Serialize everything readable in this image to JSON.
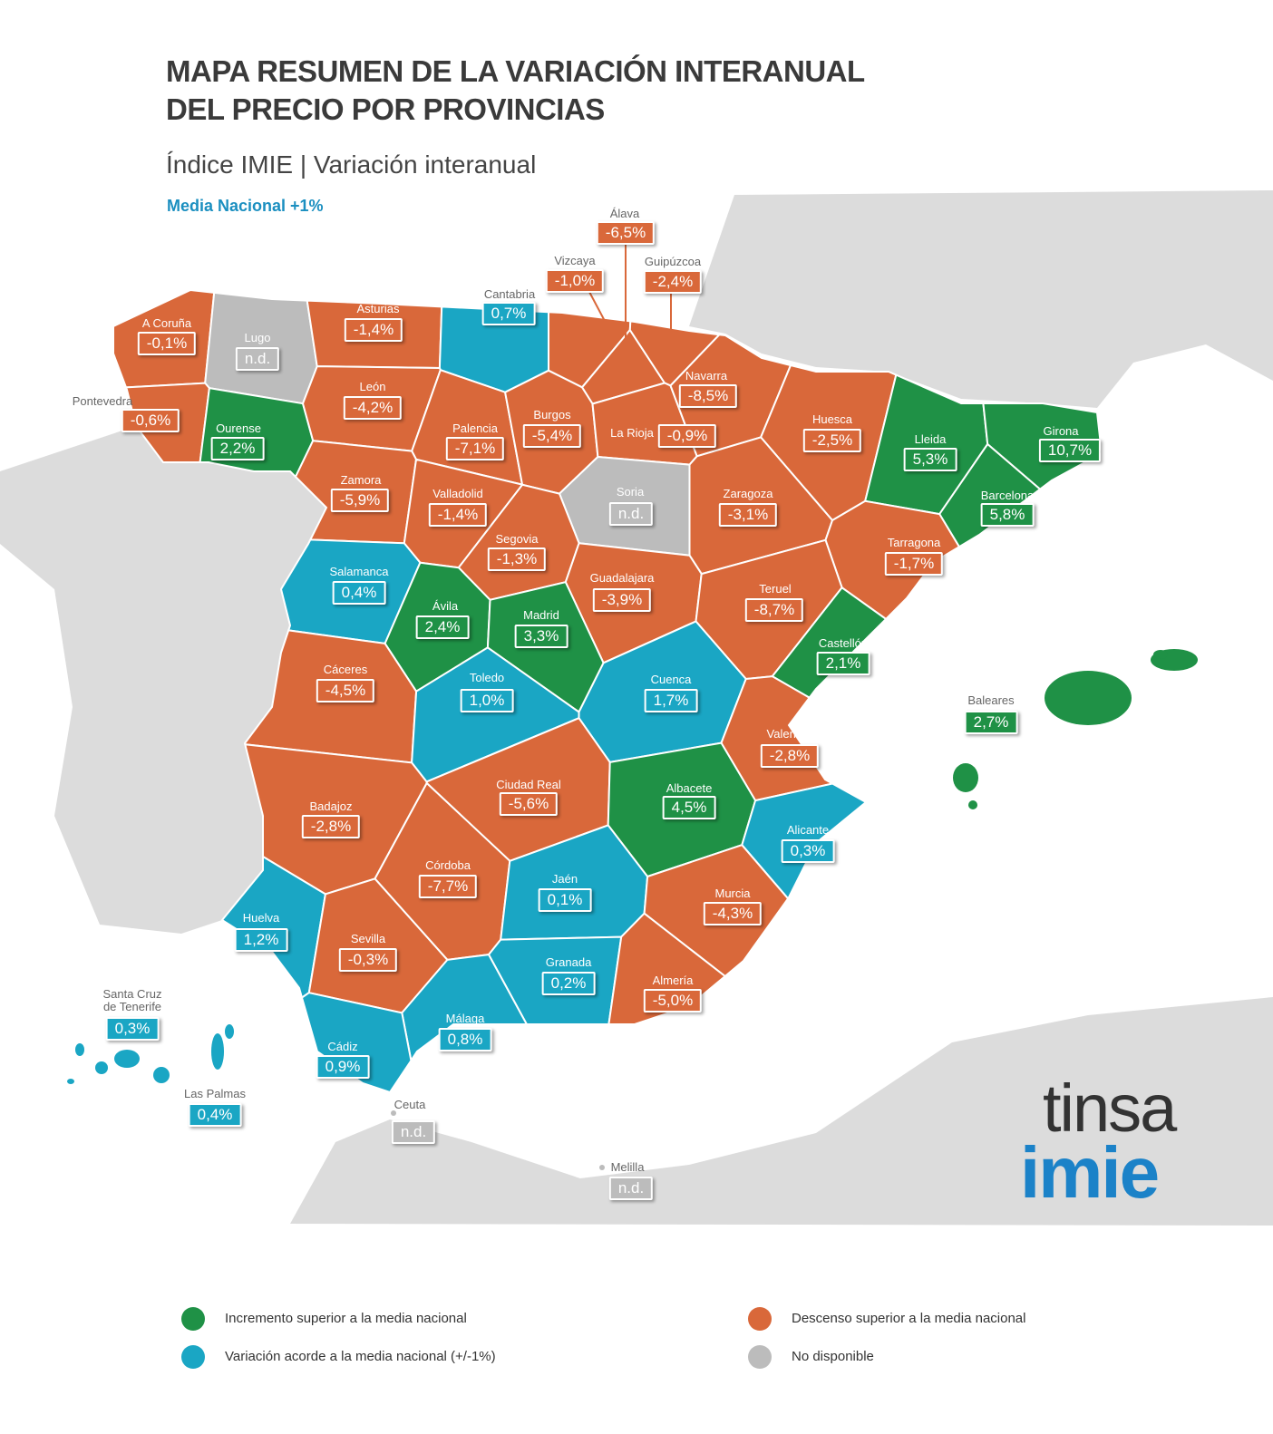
{
  "header": {
    "title_line1": "MAPA RESUMEN DE LA VARIACIÓN INTERANUAL",
    "title_line2": "DEL PRECIO POR PROVINCIAS",
    "subtitle": "Índice IMIE | Variación interanual",
    "national_average": "Media Nacional +1%"
  },
  "provinces": [
    {
      "name": "A Coruña",
      "value": "-0,1%",
      "color": "#d9683a"
    },
    {
      "name": "Lugo",
      "value": "n.d.",
      "color": "#bcbcbc"
    },
    {
      "name": "Pontevedra",
      "value": "-0,6%",
      "color": "#d9683a"
    },
    {
      "name": "Ourense",
      "value": "2,2%",
      "color": "#1f9146"
    },
    {
      "name": "Asturias",
      "value": "-1,4%",
      "color": "#d9683a"
    },
    {
      "name": "Cantabria",
      "value": "0,7%",
      "color": "#1aa6c4"
    },
    {
      "name": "Vizcaya",
      "value": "-1,0%",
      "color": "#d9683a"
    },
    {
      "name": "Álava",
      "value": "-6,5%",
      "color": "#d9683a"
    },
    {
      "name": "Guipúzcoa",
      "value": "-2,4%",
      "color": "#d9683a"
    },
    {
      "name": "León",
      "value": "-4,2%",
      "color": "#d9683a"
    },
    {
      "name": "Palencia",
      "value": "-7,1%",
      "color": "#d9683a"
    },
    {
      "name": "Burgos",
      "value": "-5,4%",
      "color": "#d9683a"
    },
    {
      "name": "La Rioja",
      "value": "-0,9%",
      "color": "#d9683a"
    },
    {
      "name": "Navarra",
      "value": "-8,5%",
      "color": "#d9683a"
    },
    {
      "name": "Huesca",
      "value": "-2,5%",
      "color": "#d9683a"
    },
    {
      "name": "Lleida",
      "value": "5,3%",
      "color": "#1f9146"
    },
    {
      "name": "Girona",
      "value": "10,7%",
      "color": "#1f9146"
    },
    {
      "name": "Barcelona",
      "value": "5,8%",
      "color": "#1f9146"
    },
    {
      "name": "Zamora",
      "value": "-5,9%",
      "color": "#d9683a"
    },
    {
      "name": "Valladolid",
      "value": "-1,4%",
      "color": "#d9683a"
    },
    {
      "name": "Soria",
      "value": "n.d.",
      "color": "#bcbcbc"
    },
    {
      "name": "Zaragoza",
      "value": "-3,1%",
      "color": "#d9683a"
    },
    {
      "name": "Segovia",
      "value": "-1,3%",
      "color": "#d9683a"
    },
    {
      "name": "Tarragona",
      "value": "-1,7%",
      "color": "#d9683a"
    },
    {
      "name": "Salamanca",
      "value": "0,4%",
      "color": "#1aa6c4"
    },
    {
      "name": "Guadalajara",
      "value": "-3,9%",
      "color": "#d9683a"
    },
    {
      "name": "Teruel",
      "value": "-8,7%",
      "color": "#d9683a"
    },
    {
      "name": "Ávila",
      "value": "2,4%",
      "color": "#1f9146"
    },
    {
      "name": "Madrid",
      "value": "3,3%",
      "color": "#1f9146"
    },
    {
      "name": "Castellón",
      "value": "2,1%",
      "color": "#1f9146"
    },
    {
      "name": "Cáceres",
      "value": "-4,5%",
      "color": "#d9683a"
    },
    {
      "name": "Toledo",
      "value": "1,0%",
      "color": "#1aa6c4"
    },
    {
      "name": "Cuenca",
      "value": "1,7%",
      "color": "#1aa6c4"
    },
    {
      "name": "Baleares",
      "value": "2,7%",
      "color": "#1f9146"
    },
    {
      "name": "Valencia",
      "value": "-2,8%",
      "color": "#d9683a"
    },
    {
      "name": "Ciudad Real",
      "value": "-5,6%",
      "color": "#d9683a"
    },
    {
      "name": "Albacete",
      "value": "4,5%",
      "color": "#1f9146"
    },
    {
      "name": "Badajoz",
      "value": "-2,8%",
      "color": "#d9683a"
    },
    {
      "name": "Alicante",
      "value": "0,3%",
      "color": "#1aa6c4"
    },
    {
      "name": "Córdoba",
      "value": "-7,7%",
      "color": "#d9683a"
    },
    {
      "name": "Jaén",
      "value": "0,1%",
      "color": "#1aa6c4"
    },
    {
      "name": "Murcia",
      "value": "-4,3%",
      "color": "#d9683a"
    },
    {
      "name": "Huelva",
      "value": "1,2%",
      "color": "#1aa6c4"
    },
    {
      "name": "Sevilla",
      "value": "-0,3%",
      "color": "#d9683a"
    },
    {
      "name": "Granada",
      "value": "0,2%",
      "color": "#1aa6c4"
    },
    {
      "name": "Almería",
      "value": "-5,0%",
      "color": "#d9683a"
    },
    {
      "name": "Santa Cruz de Tenerife",
      "value": "0,3%",
      "color": "#1aa6c4"
    },
    {
      "name": "Málaga",
      "value": "0,8%",
      "color": "#1aa6c4"
    },
    {
      "name": "Cádiz",
      "value": "0,9%",
      "color": "#1aa6c4"
    },
    {
      "name": "Las Palmas",
      "value": "0,4%",
      "color": "#1aa6c4"
    },
    {
      "name": "Ceuta",
      "value": "n.d.",
      "color": "#bcbcbc"
    },
    {
      "name": "Melilla",
      "value": "n.d.",
      "color": "#bcbcbc"
    }
  ],
  "legend": [
    {
      "label": "Incremento superior a la media nacional",
      "color": "#1f9146"
    },
    {
      "label": "Descenso superior a la media nacional",
      "color": "#d9683a"
    },
    {
      "label": "Variación acorde a la media nacional (+/-1%)",
      "color": "#1aa6c4"
    },
    {
      "label": "No disponible",
      "color": "#bcbcbc"
    }
  ],
  "logo": {
    "line1": "tinsa",
    "line2": "imie"
  }
}
